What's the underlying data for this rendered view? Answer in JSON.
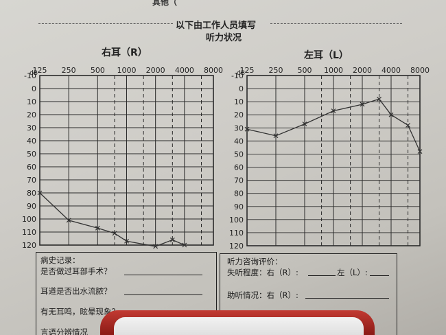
{
  "header": {
    "top_scrap": "其他（",
    "staff_section": "以下由工作人员填写",
    "title": "听力状况"
  },
  "chart_data": [
    {
      "type": "line",
      "title": "右耳（R）",
      "x_ticks": [
        "125",
        "250",
        "500",
        "1000",
        "2000",
        "4000",
        "8000"
      ],
      "y_unit": "dB",
      "y_ticks": [
        "-10",
        "0",
        "10",
        "20",
        "30",
        "40",
        "50",
        "60",
        "70",
        "80",
        "90",
        "100",
        "110",
        "120"
      ],
      "ylim": [
        -10,
        120
      ],
      "y_inverted": true,
      "grid": true,
      "x": [
        125,
        250,
        500,
        750,
        1000,
        2000,
        3000,
        4000
      ],
      "values": [
        80,
        101,
        107,
        111,
        117,
        121,
        116,
        120
      ],
      "series_color": "#333333"
    },
    {
      "type": "line",
      "title": "左耳（L）",
      "x_ticks": [
        "125",
        "250",
        "500",
        "1000",
        "2000",
        "4000",
        "8000"
      ],
      "y_unit": "dB",
      "y_ticks": [
        "-10",
        "0",
        "10",
        "20",
        "30",
        "40",
        "50",
        "60",
        "70",
        "80",
        "90",
        "100",
        "110",
        "120"
      ],
      "ylim": [
        -10,
        120
      ],
      "y_inverted": true,
      "grid": true,
      "x": [
        125,
        250,
        500,
        1000,
        2000,
        3000,
        4000,
        6000,
        8000
      ],
      "values": [
        31,
        36,
        27,
        17,
        12,
        8,
        20,
        28,
        48
      ],
      "series_color": "#333333"
    }
  ],
  "history_form": {
    "title": "病史记录：",
    "q_surgery": "是否做过耳部手术？",
    "q_bleeding": "耳道是否出水流脓？",
    "q_tinnitus": "有无耳鸣，眩晕现象？",
    "q_bottom": "言语分辨情况"
  },
  "eval_form": {
    "title": "听力咨询评价：",
    "hearing_loss_label": "失听程度：右（R）:",
    "hearing_loss_left_label": "左（L）:",
    "aid_label": "助听情况：右（R）:"
  }
}
